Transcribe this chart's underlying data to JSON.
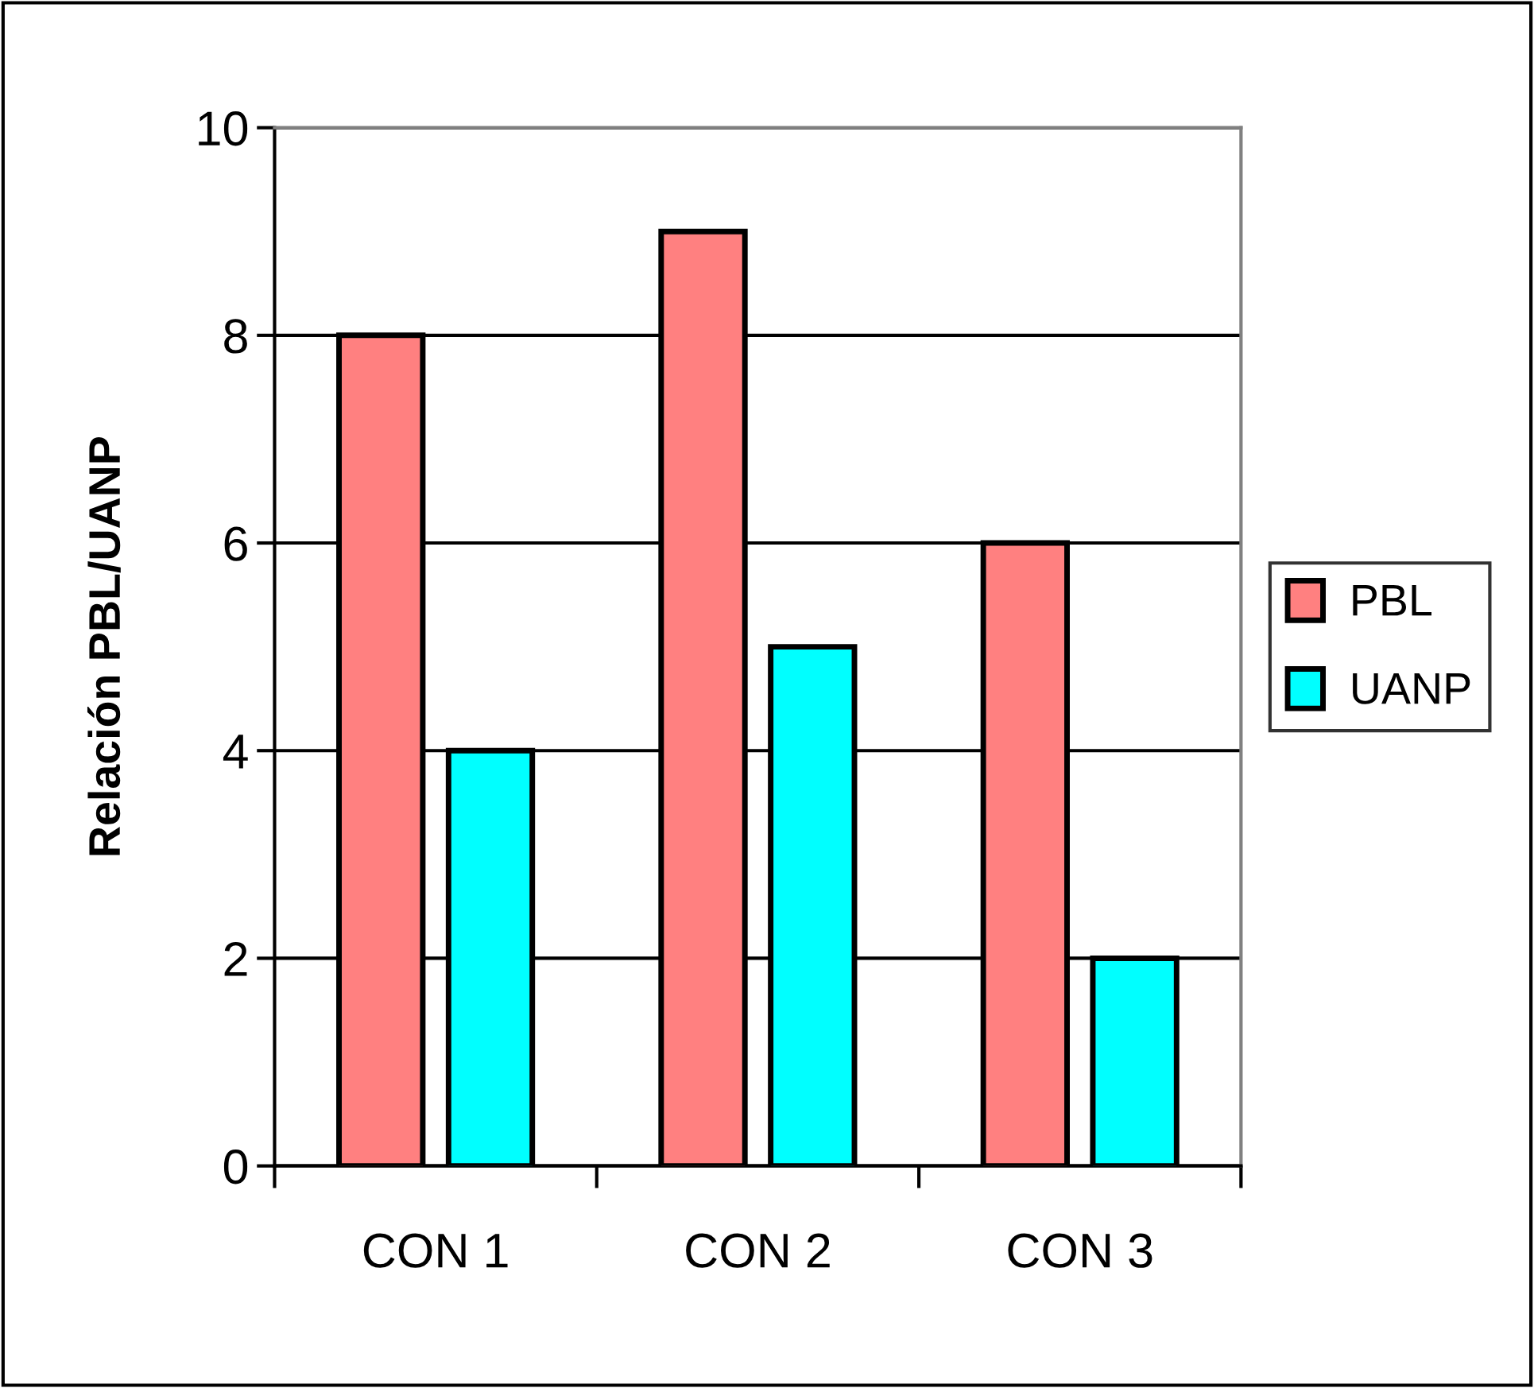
{
  "chart_data": {
    "type": "bar",
    "ylabel": "Relación PBL/UANP",
    "categories": [
      "CON 1",
      "CON 2",
      "CON 3"
    ],
    "series": [
      {
        "name": "PBL",
        "color": "#ff8080",
        "values": [
          8,
          9,
          6
        ]
      },
      {
        "name": "UANP",
        "color": "#00ffff",
        "values": [
          4,
          5,
          2
        ]
      }
    ],
    "ylim": [
      0,
      10
    ],
    "yticks": [
      0,
      2,
      4,
      6,
      8,
      10
    ],
    "grid": "y",
    "legend": "right"
  }
}
